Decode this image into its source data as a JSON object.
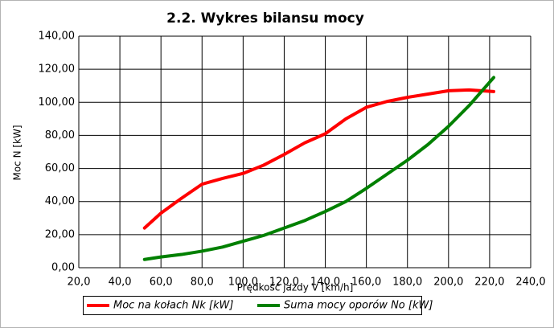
{
  "chart_data": {
    "type": "line",
    "title": "2.2. Wykres bilansu mocy",
    "x_label": "Prędkość jazdy V [km/h]",
    "y_label": "Moc N [kW]",
    "x": [
      52,
      60,
      70,
      80,
      90,
      100,
      110,
      120,
      130,
      140,
      150,
      160,
      170,
      180,
      190,
      200,
      210,
      222
    ],
    "series": [
      {
        "name": "Moc na kołach Nk [kW]",
        "color": "#ff0000",
        "values": [
          24,
          33,
          42,
          50.5,
          54,
          57,
          62,
          68.5,
          75.5,
          81,
          90,
          97,
          100.5,
          103,
          105,
          107,
          107.5,
          106.5
        ]
      },
      {
        "name": "Suma mocy oporów  No [kW]",
        "color": "#008000",
        "values": [
          5,
          6.5,
          8,
          10,
          12.5,
          16,
          19.5,
          24,
          28.5,
          34,
          40,
          48,
          56.5,
          65,
          74.5,
          85.5,
          98,
          115
        ]
      }
    ],
    "xlim": [
      20,
      240
    ],
    "xticks": [
      {
        "value": 20,
        "label": "20,0"
      },
      {
        "value": 40,
        "label": "40,0"
      },
      {
        "value": 60,
        "label": "60,0"
      },
      {
        "value": 80,
        "label": "80,0"
      },
      {
        "value": 100,
        "label": "100,0"
      },
      {
        "value": 120,
        "label": "120,0"
      },
      {
        "value": 140,
        "label": "140,0"
      },
      {
        "value": 160,
        "label": "160,0"
      },
      {
        "value": 180,
        "label": "180,0"
      },
      {
        "value": 200,
        "label": "200,0"
      },
      {
        "value": 220,
        "label": "220,0"
      },
      {
        "value": 240,
        "label": "240,0"
      }
    ],
    "ylim": [
      0,
      140
    ],
    "yticks": [
      {
        "value": 0,
        "label": "0,00"
      },
      {
        "value": 20,
        "label": "20,00"
      },
      {
        "value": 40,
        "label": "40,00"
      },
      {
        "value": 60,
        "label": "60,00"
      },
      {
        "value": 80,
        "label": "80,00"
      },
      {
        "value": 100,
        "label": "100,00"
      },
      {
        "value": 120,
        "label": "120,00"
      },
      {
        "value": 140,
        "label": "140,00"
      }
    ],
    "grid": true,
    "legend": "bottom"
  }
}
